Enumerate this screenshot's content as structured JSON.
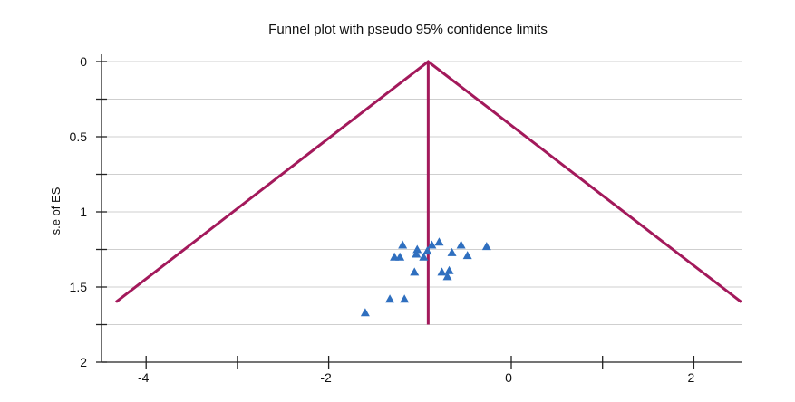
{
  "chart_data": {
    "type": "scatter",
    "title": "Funnel plot with pseudo 95% confidence limits",
    "xlabel": "",
    "ylabel": "s.e of ES",
    "xlim": [
      -4.6,
      2.6
    ],
    "ylim": [
      2,
      0
    ],
    "y_inverted": true,
    "x_ticks": [
      -4,
      -3,
      -2,
      0,
      1,
      2
    ],
    "x_tick_labels": [
      "-4",
      "",
      "-2",
      "0",
      "",
      "2"
    ],
    "y_ticks": [
      0,
      0.25,
      0.5,
      0.75,
      1,
      1.25,
      1.5,
      1.75,
      2
    ],
    "y_tick_labels": [
      "0",
      "",
      "0.5",
      "",
      "1",
      "",
      "1.5",
      "",
      "2"
    ],
    "grid": true,
    "pooled_effect": -0.91,
    "funnel": {
      "apex": [
        -0.91,
        0
      ],
      "left_end": [
        -4.33,
        1.6
      ],
      "right_end": [
        2.52,
        1.6
      ],
      "midline_end_se": 1.75
    },
    "points": [
      {
        "x": -1.19,
        "y": 1.22
      },
      {
        "x": -0.87,
        "y": 1.22
      },
      {
        "x": -0.79,
        "y": 1.2
      },
      {
        "x": -0.55,
        "y": 1.22
      },
      {
        "x": -0.27,
        "y": 1.23
      },
      {
        "x": -1.03,
        "y": 1.25
      },
      {
        "x": -0.92,
        "y": 1.26
      },
      {
        "x": -0.65,
        "y": 1.27
      },
      {
        "x": -1.04,
        "y": 1.28
      },
      {
        "x": -1.28,
        "y": 1.3
      },
      {
        "x": -1.22,
        "y": 1.3
      },
      {
        "x": -0.96,
        "y": 1.3
      },
      {
        "x": -0.48,
        "y": 1.29
      },
      {
        "x": -1.06,
        "y": 1.4
      },
      {
        "x": -0.76,
        "y": 1.4
      },
      {
        "x": -0.68,
        "y": 1.39
      },
      {
        "x": -0.7,
        "y": 1.43
      },
      {
        "x": -1.33,
        "y": 1.58
      },
      {
        "x": -1.17,
        "y": 1.58
      },
      {
        "x": -1.6,
        "y": 1.67
      }
    ],
    "colors": {
      "funnel": "#a3195b",
      "points": "#2f6fbf",
      "grid": "#cfcfcf",
      "axis": "#222222"
    }
  }
}
